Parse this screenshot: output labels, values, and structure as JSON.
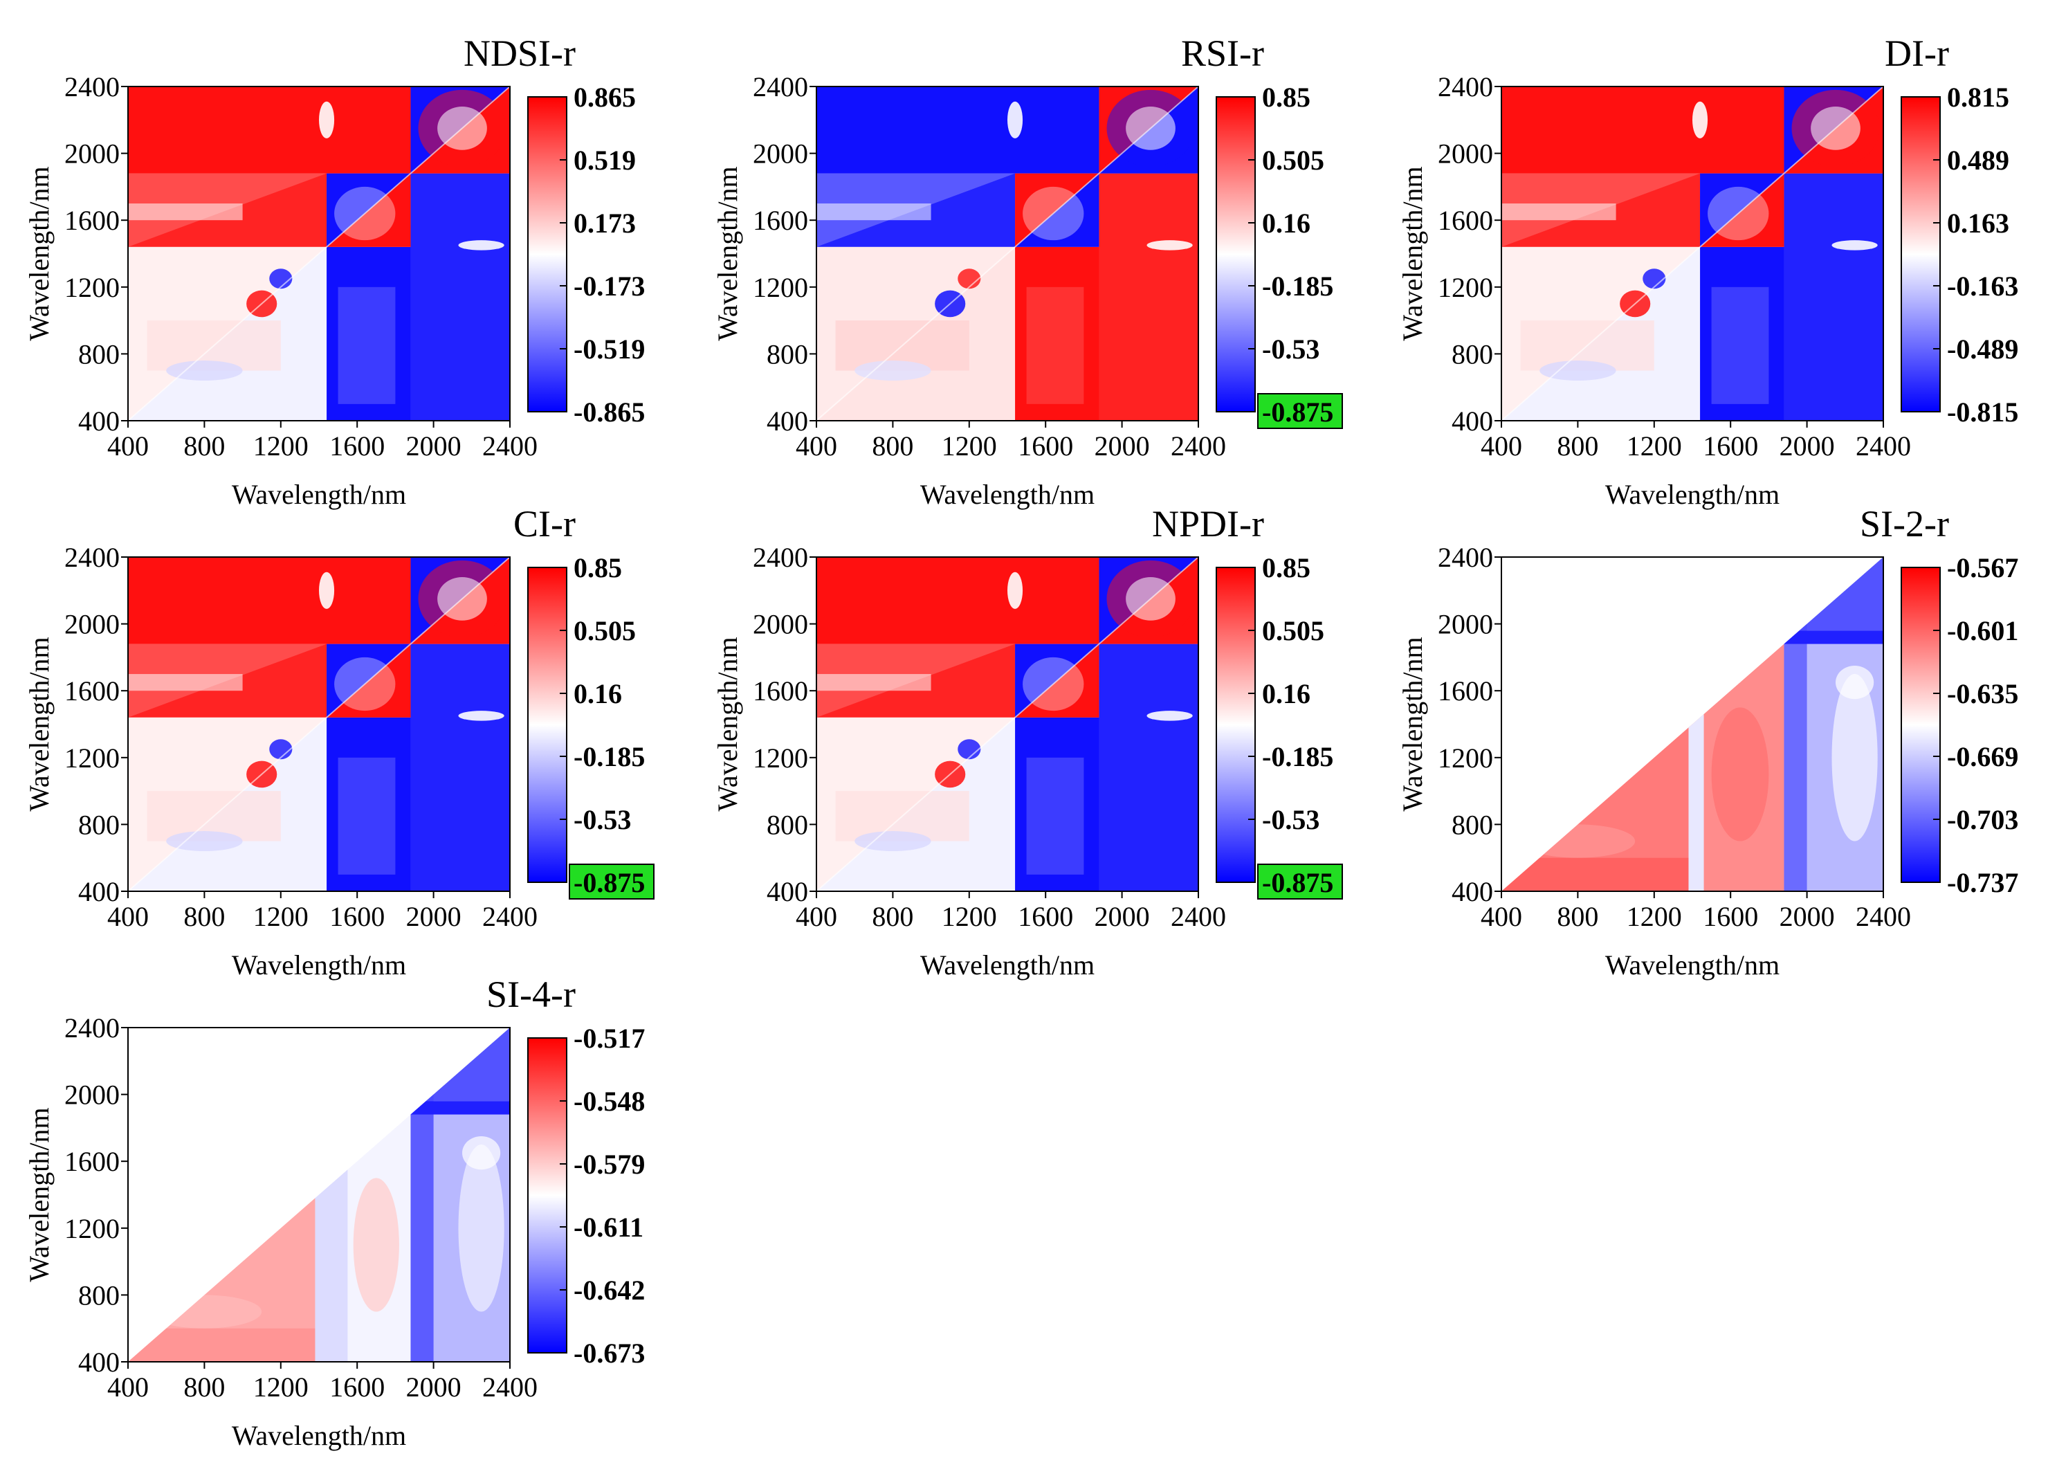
{
  "colors": {
    "high": "#ff0000",
    "mid": "#ffffff",
    "low": "#0000ff",
    "highlight": "#22dd22"
  },
  "chart_data": [
    {
      "type": "heatmap",
      "name": "panel-ndsi",
      "title": "NDSI-r",
      "xlabel": "Wavelength/nm",
      "ylabel": "Wavelength/nm",
      "x_ticks": [
        "400",
        "800",
        "1200",
        "1600",
        "2000",
        "2400"
      ],
      "y_ticks": [
        "400",
        "800",
        "1200",
        "1600",
        "2000",
        "2400"
      ],
      "xlim": [
        400,
        2400
      ],
      "ylim": [
        400,
        2400
      ],
      "colorbar": {
        "ticks": [
          "0.865",
          "0.519",
          "0.173",
          "-0.173",
          "-0.519",
          "-0.865"
        ],
        "range": [
          -0.865,
          0.865
        ],
        "highlighted": null
      },
      "pattern": "full"
    },
    {
      "type": "heatmap",
      "name": "panel-rsi",
      "title": "RSI-r",
      "xlabel": "Wavelength/nm",
      "ylabel": "Wavelength/nm",
      "x_ticks": [
        "400",
        "800",
        "1200",
        "1600",
        "2000",
        "2400"
      ],
      "y_ticks": [
        "400",
        "800",
        "1200",
        "1600",
        "2000",
        "2400"
      ],
      "xlim": [
        400,
        2400
      ],
      "ylim": [
        400,
        2400
      ],
      "colorbar": {
        "ticks": [
          "0.85",
          "0.505",
          "0.16",
          "-0.185",
          "-0.53",
          "-0.875"
        ],
        "range": [
          -0.875,
          0.85
        ],
        "highlighted": "-0.875"
      },
      "pattern": "full-inverted"
    },
    {
      "type": "heatmap",
      "name": "panel-di",
      "title": "DI-r",
      "xlabel": "Wavelength/nm",
      "ylabel": "Wavelength/nm",
      "x_ticks": [
        "400",
        "800",
        "1200",
        "1600",
        "2000",
        "2400"
      ],
      "y_ticks": [
        "400",
        "800",
        "1200",
        "1600",
        "2000",
        "2400"
      ],
      "xlim": [
        400,
        2400
      ],
      "ylim": [
        400,
        2400
      ],
      "colorbar": {
        "ticks": [
          "0.815",
          "0.489",
          "0.163",
          "-0.163",
          "-0.489",
          "-0.815"
        ],
        "range": [
          -0.815,
          0.815
        ],
        "highlighted": null
      },
      "pattern": "full"
    },
    {
      "type": "heatmap",
      "name": "panel-ci",
      "title": "CI-r",
      "xlabel": "Wavelength/nm",
      "ylabel": "Wavelength/nm",
      "x_ticks": [
        "400",
        "800",
        "1200",
        "1600",
        "2000",
        "2400"
      ],
      "y_ticks": [
        "400",
        "800",
        "1200",
        "1600",
        "2000",
        "2400"
      ],
      "xlim": [
        400,
        2400
      ],
      "ylim": [
        400,
        2400
      ],
      "colorbar": {
        "ticks": [
          "0.85",
          "0.505",
          "0.16",
          "-0.185",
          "-0.53",
          "-0.875"
        ],
        "range": [
          -0.875,
          0.85
        ],
        "highlighted": "-0.875"
      },
      "pattern": "full"
    },
    {
      "type": "heatmap",
      "name": "panel-npdi",
      "title": "NPDI-r",
      "xlabel": "Wavelength/nm",
      "ylabel": "Wavelength/nm",
      "x_ticks": [
        "400",
        "800",
        "1200",
        "1600",
        "2000",
        "2400"
      ],
      "y_ticks": [
        "400",
        "800",
        "1200",
        "1600",
        "2000",
        "2400"
      ],
      "xlim": [
        400,
        2400
      ],
      "ylim": [
        400,
        2400
      ],
      "colorbar": {
        "ticks": [
          "0.85",
          "0.505",
          "0.16",
          "-0.185",
          "-0.53",
          "-0.875"
        ],
        "range": [
          -0.875,
          0.85
        ],
        "highlighted": "-0.875"
      },
      "pattern": "full"
    },
    {
      "type": "heatmap",
      "name": "panel-si2",
      "title": "SI-2-r",
      "xlabel": "Wavelength/nm",
      "ylabel": "Wavelength/nm",
      "x_ticks": [
        "400",
        "800",
        "1200",
        "1600",
        "2000",
        "2400"
      ],
      "y_ticks": [
        "400",
        "800",
        "1200",
        "1600",
        "2000",
        "2400"
      ],
      "xlim": [
        400,
        2400
      ],
      "ylim": [
        400,
        2400
      ],
      "colorbar": {
        "ticks": [
          "-0.567",
          "-0.601",
          "-0.635",
          "-0.669",
          "-0.703",
          "-0.737"
        ],
        "range": [
          -0.737,
          -0.567
        ],
        "highlighted": null
      },
      "pattern": "triangle"
    },
    {
      "type": "heatmap",
      "name": "panel-si4",
      "title": "SI-4-r",
      "xlabel": "Wavelength/nm",
      "ylabel": "Wavelength/nm",
      "x_ticks": [
        "400",
        "800",
        "1200",
        "1600",
        "2000",
        "2400"
      ],
      "y_ticks": [
        "400",
        "800",
        "1200",
        "1600",
        "2000",
        "2400"
      ],
      "xlim": [
        400,
        2400
      ],
      "ylim": [
        400,
        2400
      ],
      "colorbar": {
        "ticks": [
          "-0.517",
          "-0.548",
          "-0.579",
          "-0.611",
          "-0.642",
          "-0.673"
        ],
        "range": [
          -0.673,
          -0.517
        ],
        "highlighted": null
      },
      "pattern": "triangle"
    }
  ]
}
